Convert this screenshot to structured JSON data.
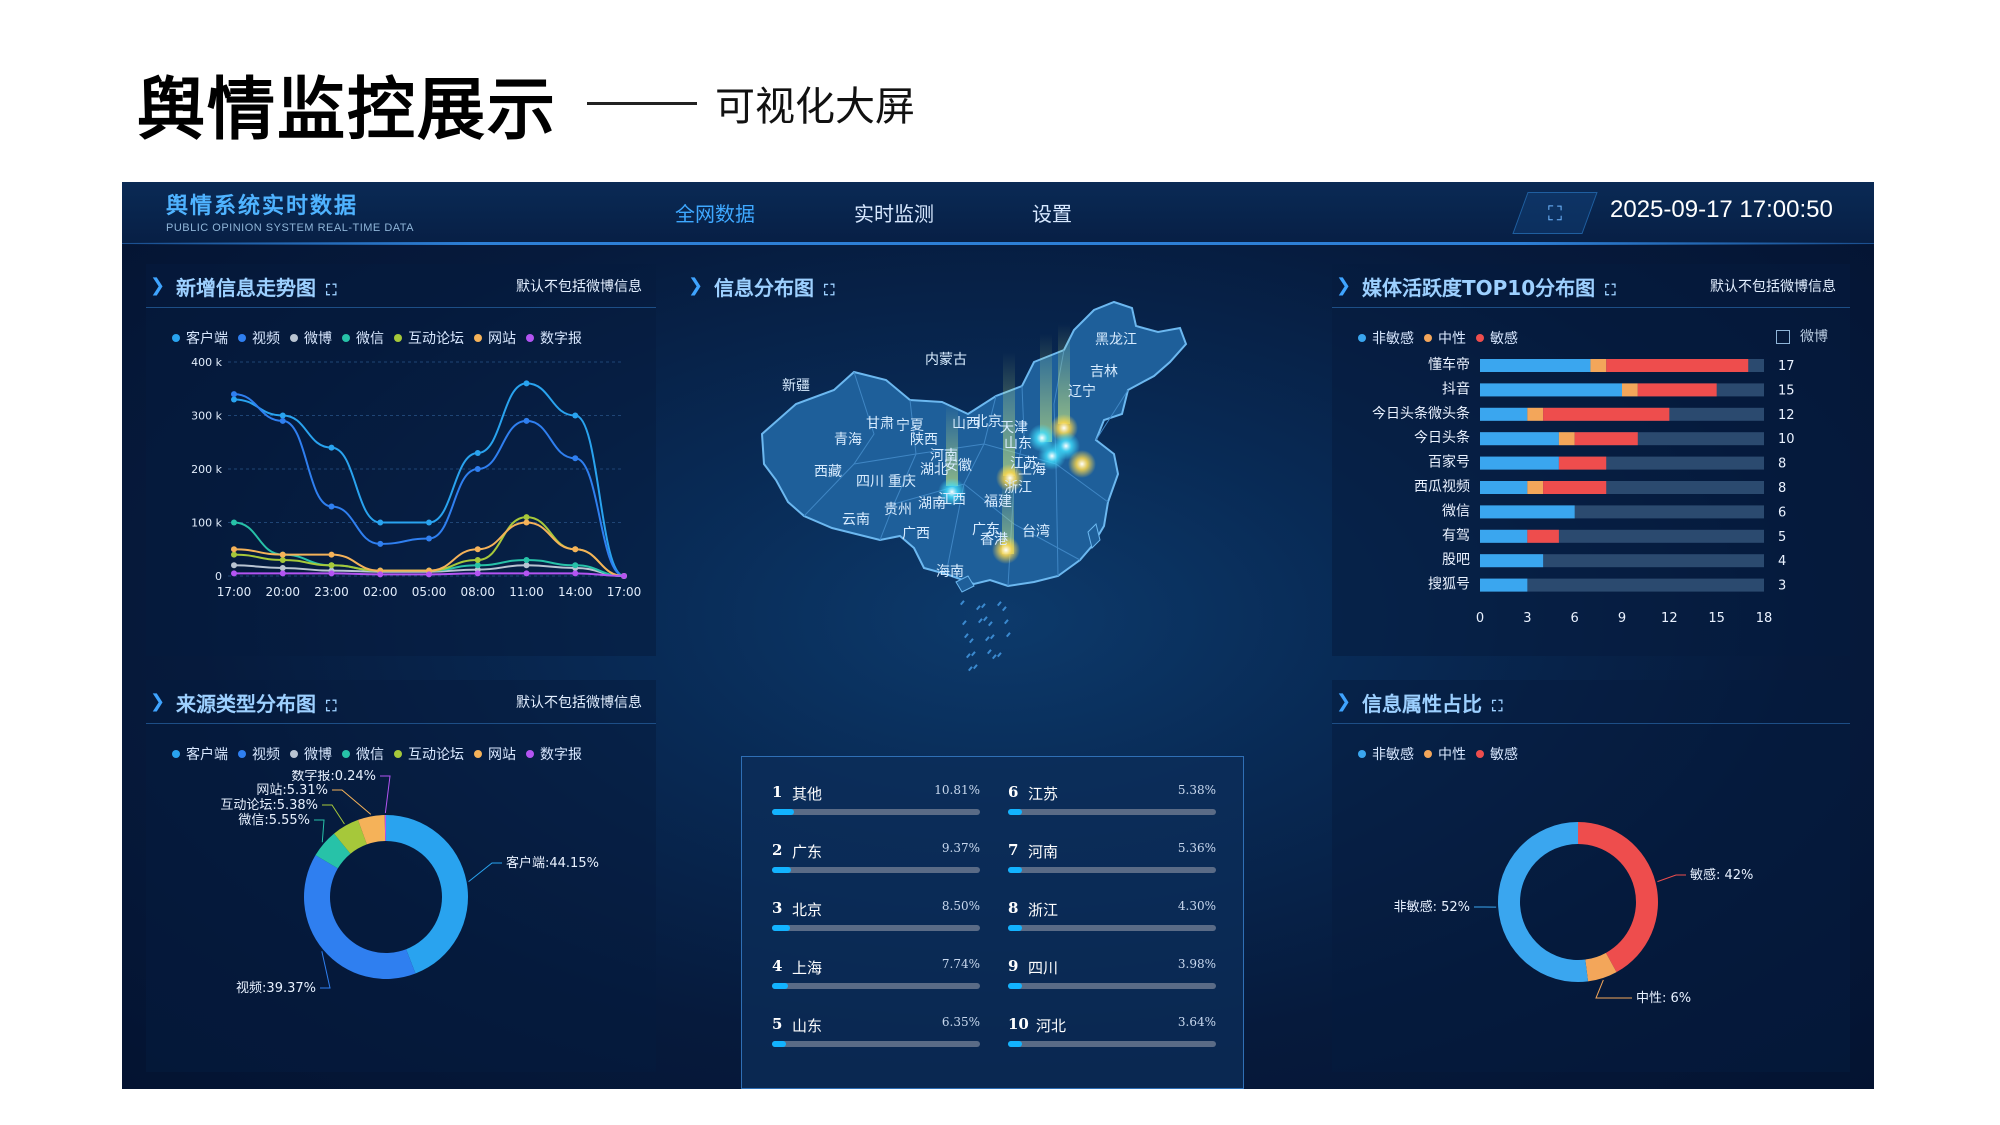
{
  "slide": {
    "title": "舆情监控展示",
    "subtitle": "可视化大屏"
  },
  "header": {
    "brand_title": "舆情系统实时数据",
    "brand_subtitle": "PUBLIC OPINION SYSTEM REAL-TIME DATA",
    "nav": [
      "全网数据",
      "实时监测",
      "设置"
    ],
    "active_nav": "全网数据",
    "datetime": "2025-09-17 17:00:50"
  },
  "colors": {
    "client": "#29a3ef",
    "video": "#2f7ff0",
    "weibo": "#b9c4d2",
    "wechat": "#27c2a8",
    "forum": "#a6c83a",
    "website": "#f5b259",
    "digital": "#b354f2",
    "non_sensitive": "#3aa6ef",
    "neutral": "#f3a65a",
    "sensitive": "#ee4d4d"
  },
  "legend_sources": [
    "客户端",
    "视频",
    "微博",
    "微信",
    "互动论坛",
    "网站",
    "数字报"
  ],
  "panel_trend": {
    "title": "新增信息走势图",
    "note": "默认不包括微博信息",
    "chart_data": {
      "type": "line",
      "x": [
        "17:00",
        "20:00",
        "23:00",
        "02:00",
        "05:00",
        "08:00",
        "11:00",
        "14:00",
        "17:00"
      ],
      "yticks": [
        "0",
        "100 k",
        "200 k",
        "300 k",
        "400 k"
      ],
      "ylim": [
        0,
        400000
      ],
      "series": [
        {
          "name": "客户端",
          "values": [
            330000,
            300000,
            240000,
            100000,
            100000,
            230000,
            360000,
            300000,
            0
          ]
        },
        {
          "name": "视频",
          "values": [
            340000,
            290000,
            130000,
            60000,
            70000,
            200000,
            290000,
            220000,
            0
          ]
        },
        {
          "name": "微博",
          "values": [
            20000,
            15000,
            10000,
            8000,
            8000,
            12000,
            20000,
            15000,
            0
          ]
        },
        {
          "name": "微信",
          "values": [
            100000,
            40000,
            20000,
            10000,
            10000,
            20000,
            30000,
            20000,
            0
          ]
        },
        {
          "name": "互动论坛",
          "values": [
            40000,
            30000,
            20000,
            10000,
            10000,
            30000,
            110000,
            50000,
            0
          ]
        },
        {
          "name": "网站",
          "values": [
            50000,
            40000,
            40000,
            10000,
            10000,
            50000,
            100000,
            50000,
            0
          ]
        },
        {
          "name": "数字报",
          "values": [
            5000,
            5000,
            5000,
            3000,
            3000,
            5000,
            5000,
            5000,
            0
          ]
        }
      ]
    }
  },
  "panel_source": {
    "title": "来源类型分布图",
    "note": "默认不包括微博信息",
    "chart_data": {
      "type": "pie",
      "slices": [
        {
          "name": "客户端",
          "value": 44.15,
          "label": "客户端:44.15%"
        },
        {
          "name": "视频",
          "value": 39.37,
          "label": "视频:39.37%"
        },
        {
          "name": "微信",
          "value": 5.55,
          "label": "微信:5.55%"
        },
        {
          "name": "互动论坛",
          "value": 5.38,
          "label": "互动论坛:5.38%"
        },
        {
          "name": "网站",
          "value": 5.31,
          "label": "网站:5.31%"
        },
        {
          "name": "数字报",
          "value": 0.24,
          "label": "数字报:0.24%"
        }
      ]
    }
  },
  "panel_map": {
    "title": "信息分布图",
    "provinces": [
      "黑龙江",
      "吉林",
      "辽宁",
      "内蒙古",
      "新疆",
      "甘肃",
      "宁夏",
      "山西",
      "青海",
      "陕西",
      "河南",
      "西藏",
      "四川",
      "重庆",
      "湖北",
      "安徽",
      "浙江",
      "贵州",
      "湖南",
      "江西",
      "福建",
      "云南",
      "广西",
      "广东",
      "香港",
      "台湾",
      "海南",
      "北京",
      "天津",
      "山东",
      "江苏",
      "上海"
    ]
  },
  "ranking": [
    {
      "rank": "1",
      "name": "其他",
      "pct": "10.81%",
      "value": 10.81
    },
    {
      "rank": "2",
      "name": "广东",
      "pct": "9.37%",
      "value": 9.37
    },
    {
      "rank": "3",
      "name": "北京",
      "pct": "8.50%",
      "value": 8.5
    },
    {
      "rank": "4",
      "name": "上海",
      "pct": "7.74%",
      "value": 7.74
    },
    {
      "rank": "5",
      "name": "山东",
      "pct": "6.35%",
      "value": 6.35
    },
    {
      "rank": "6",
      "name": "江苏",
      "pct": "5.38%",
      "value": 5.38
    },
    {
      "rank": "7",
      "name": "河南",
      "pct": "5.36%",
      "value": 5.36
    },
    {
      "rank": "8",
      "name": "浙江",
      "pct": "4.30%",
      "value": 4.3
    },
    {
      "rank": "9",
      "name": "四川",
      "pct": "3.98%",
      "value": 3.98
    },
    {
      "rank": "10",
      "name": "河北",
      "pct": "3.64%",
      "value": 3.64
    }
  ],
  "panel_media": {
    "title": "媒体活跃度TOP10分布图",
    "note": "默认不包括微博信息",
    "weibo_toggle": "微博",
    "legend": [
      "非敏感",
      "中性",
      "敏感"
    ],
    "chart_data": {
      "type": "bar",
      "orientation": "horizontal",
      "stacked": true,
      "categories": [
        "懂车帝",
        "抖音",
        "今日头条微头条",
        "今日头条",
        "百家号",
        "西瓜视频",
        "微信",
        "有驾",
        "股吧",
        "搜狐号"
      ],
      "series": [
        {
          "name": "非敏感",
          "values": [
            7,
            9,
            3,
            5,
            5,
            3,
            6,
            3,
            4,
            3
          ]
        },
        {
          "name": "中性",
          "values": [
            1,
            1,
            1,
            1,
            0,
            1,
            0,
            0,
            0,
            0
          ]
        },
        {
          "name": "敏感",
          "values": [
            9,
            5,
            8,
            4,
            3,
            4,
            0,
            2,
            0,
            0
          ]
        }
      ],
      "totals": [
        17,
        15,
        12,
        10,
        8,
        8,
        6,
        5,
        4,
        3
      ],
      "xticks": [
        "0",
        "3",
        "6",
        "9",
        "12",
        "15",
        "18"
      ],
      "xlim": [
        0,
        18
      ]
    }
  },
  "panel_attr": {
    "title": "信息属性占比",
    "legend": [
      "非敏感",
      "中性",
      "敏感"
    ],
    "chart_data": {
      "type": "pie",
      "slices": [
        {
          "name": "敏感",
          "value": 42,
          "label": "敏感: 42%"
        },
        {
          "name": "中性",
          "value": 6,
          "label": "中性: 6%"
        },
        {
          "name": "非敏感",
          "value": 52,
          "label": "非敏感: 52%"
        }
      ]
    }
  }
}
